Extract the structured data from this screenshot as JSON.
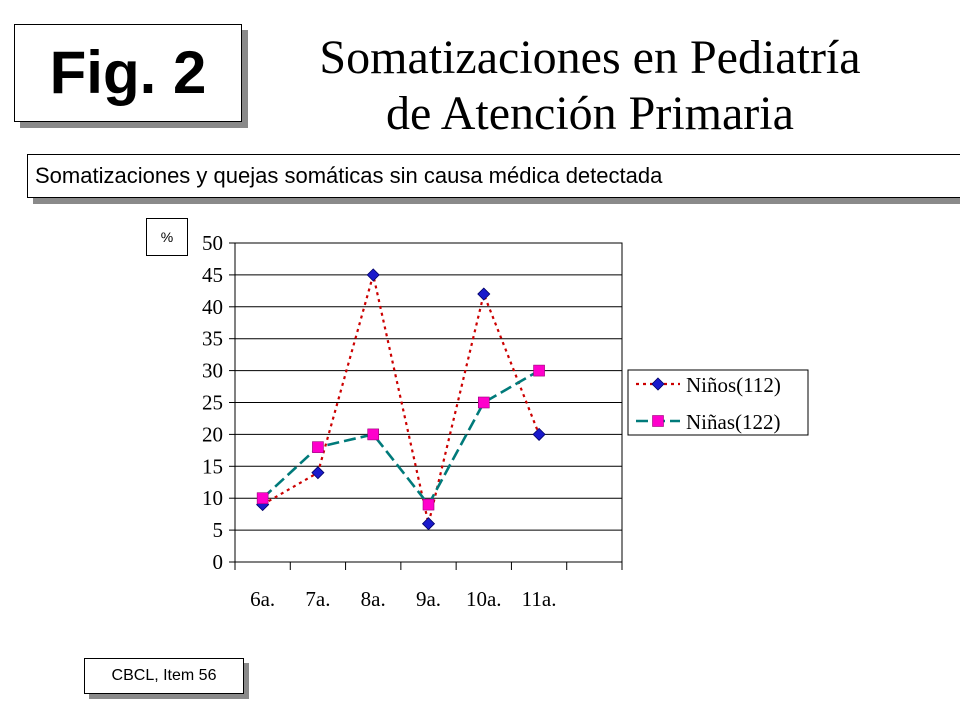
{
  "fig_label": "Fig. 2",
  "title_line1": "Somatizaciones en Pediatría",
  "title_line2": "de Atención Primaria",
  "subtitle": "Somatizaciones y quejas somáticas sin causa médica detectada",
  "unit_label": "%",
  "source_label": "CBCL, Item 56",
  "chart_data": {
    "type": "line",
    "title": "",
    "xlabel": "",
    "ylabel": "%",
    "ylim": [
      0,
      50
    ],
    "yticks": [
      0,
      5,
      10,
      15,
      20,
      25,
      30,
      35,
      40,
      45,
      50
    ],
    "categories": [
      "6a.",
      "7a.",
      "8a.",
      "9a.",
      "10a.",
      "11a."
    ],
    "grid": true,
    "legend_position": "right",
    "series": [
      {
        "name": "Niños(112)",
        "values": [
          9,
          14,
          45,
          6,
          42,
          20
        ],
        "line_color": "#cc0000",
        "marker_color": "#1a1acc",
        "marker": "diamond",
        "line_style": "dotted"
      },
      {
        "name": "Niñas(122)",
        "values": [
          10,
          18,
          20,
          9,
          25,
          30
        ],
        "line_color": "#007a7a",
        "marker_color": "#ff00cc",
        "marker": "square",
        "line_style": "dashed"
      }
    ]
  }
}
